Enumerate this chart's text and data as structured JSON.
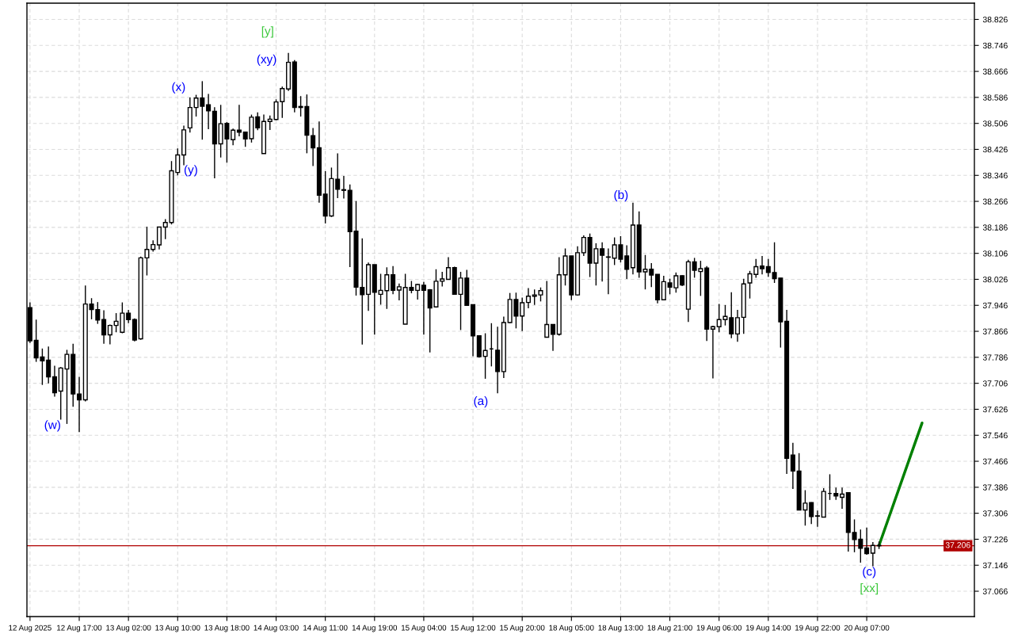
{
  "chart_data": {
    "type": "candlestick",
    "categories": [
      "12 Aug 2025",
      null,
      null,
      null,
      null,
      null,
      null,
      null,
      "12 Aug 17:00",
      null,
      null,
      null,
      null,
      null,
      null,
      null,
      "13 Aug 02:00",
      null,
      null,
      null,
      null,
      null,
      null,
      null,
      "13 Aug 10:00",
      null,
      null,
      null,
      null,
      null,
      null,
      null,
      "13 Aug 18:00",
      null,
      null,
      null,
      null,
      null,
      null,
      null,
      "14 Aug 03:00",
      null,
      null,
      null,
      null,
      null,
      null,
      null,
      "14 Aug 11:00",
      null,
      null,
      null,
      null,
      null,
      null,
      null,
      "14 Aug 19:00",
      null,
      null,
      null,
      null,
      null,
      null,
      null,
      "15 Aug 04:00",
      null,
      null,
      null,
      null,
      null,
      null,
      null,
      "15 Aug 12:00",
      null,
      null,
      null,
      null,
      null,
      null,
      null,
      "15 Aug 20:00",
      null,
      null,
      null,
      null,
      null,
      null,
      null,
      "18 Aug 05:00",
      null,
      null,
      null,
      null,
      null,
      null,
      null,
      "18 Aug 13:00",
      null,
      null,
      null,
      null,
      null,
      null,
      null,
      "18 Aug 21:00",
      null,
      null,
      null,
      null,
      null,
      null,
      null,
      "19 Aug 06:00",
      null,
      null,
      null,
      null,
      null,
      null,
      null,
      "19 Aug 14:00",
      null,
      null,
      null,
      null,
      null,
      null,
      null,
      "19 Aug 22:00",
      null,
      null,
      null,
      null,
      null,
      null,
      null,
      "20 Aug 07:00",
      null,
      null,
      null,
      null,
      null,
      null,
      null,
      null,
      null,
      null,
      null,
      null,
      null,
      null,
      null,
      null,
      null
    ],
    "ohlc": [
      [
        37.939,
        37.955,
        37.83,
        37.837
      ],
      [
        37.838,
        37.902,
        37.772,
        37.784
      ],
      [
        37.787,
        37.813,
        37.701,
        37.775
      ],
      [
        37.777,
        37.819,
        37.706,
        37.726
      ],
      [
        37.726,
        37.76,
        37.665,
        37.677
      ],
      [
        37.682,
        37.756,
        37.594,
        37.753
      ],
      [
        37.75,
        37.809,
        37.581,
        37.795
      ],
      [
        37.795,
        37.828,
        37.634,
        37.673
      ],
      [
        37.673,
        37.726,
        37.556,
        37.655
      ],
      [
        37.655,
        38.007,
        37.65,
        37.95
      ],
      [
        37.95,
        37.968,
        37.903,
        37.933
      ],
      [
        37.933,
        37.956,
        37.889,
        37.901
      ],
      [
        37.902,
        37.931,
        37.828,
        37.855
      ],
      [
        37.855,
        37.887,
        37.826,
        37.884
      ],
      [
        37.884,
        37.922,
        37.863,
        37.897
      ],
      [
        37.863,
        37.955,
        37.86,
        37.922
      ],
      [
        37.922,
        37.932,
        37.891,
        37.902
      ],
      [
        37.902,
        37.906,
        37.835,
        37.839
      ],
      [
        37.843,
        38.096,
        37.84,
        38.092
      ],
      [
        38.092,
        38.188,
        38.038,
        38.118
      ],
      [
        38.118,
        38.146,
        38.111,
        38.133
      ],
      [
        38.132,
        38.187,
        38.118,
        38.187
      ],
      [
        38.187,
        38.211,
        38.15,
        38.201
      ],
      [
        38.201,
        38.39,
        38.195,
        38.36
      ],
      [
        38.355,
        38.429,
        38.346,
        38.409
      ],
      [
        38.409,
        38.499,
        38.377,
        38.486
      ],
      [
        38.492,
        38.586,
        38.478,
        38.555
      ],
      [
        38.555,
        38.594,
        38.527,
        38.584
      ],
      [
        38.584,
        38.636,
        38.456,
        38.559
      ],
      [
        38.563,
        38.597,
        38.488,
        38.545
      ],
      [
        38.543,
        38.556,
        38.337,
        38.443
      ],
      [
        38.443,
        38.563,
        38.401,
        38.505
      ],
      [
        38.506,
        38.51,
        38.385,
        38.458
      ],
      [
        38.456,
        38.49,
        38.439,
        38.485
      ],
      [
        38.485,
        38.563,
        38.466,
        38.479
      ],
      [
        38.479,
        38.479,
        38.434,
        38.458
      ],
      [
        38.459,
        38.533,
        38.447,
        38.525
      ],
      [
        38.526,
        38.54,
        38.485,
        38.492
      ],
      [
        38.413,
        38.533,
        38.413,
        38.512
      ],
      [
        38.512,
        38.53,
        38.486,
        38.519
      ],
      [
        38.518,
        38.58,
        38.516,
        38.572
      ],
      [
        38.573,
        38.619,
        38.523,
        38.613
      ],
      [
        38.612,
        38.723,
        38.606,
        38.694
      ],
      [
        38.695,
        38.701,
        38.54,
        38.555
      ],
      [
        38.558,
        38.59,
        38.527,
        38.555
      ],
      [
        38.558,
        38.595,
        38.414,
        38.47
      ],
      [
        38.468,
        38.492,
        38.375,
        38.431
      ],
      [
        38.431,
        38.512,
        38.262,
        38.285
      ],
      [
        38.288,
        38.359,
        38.198,
        38.221
      ],
      [
        38.221,
        38.37,
        38.218,
        38.336
      ],
      [
        38.334,
        38.414,
        38.276,
        38.303
      ],
      [
        38.302,
        38.344,
        38.275,
        38.3
      ],
      [
        38.3,
        38.318,
        38.064,
        38.173
      ],
      [
        38.174,
        38.267,
        37.976,
        38.002
      ],
      [
        38.001,
        38.152,
        37.825,
        37.979
      ],
      [
        37.98,
        38.078,
        37.929,
        38.071
      ],
      [
        38.071,
        38.071,
        37.856,
        37.986
      ],
      [
        37.98,
        38.043,
        37.948,
        37.992
      ],
      [
        37.991,
        38.063,
        37.935,
        38.04
      ],
      [
        38.04,
        38.067,
        37.98,
        37.992
      ],
      [
        37.993,
        38.013,
        37.961,
        38.003
      ],
      [
        37.888,
        38.043,
        37.888,
        38.001
      ],
      [
        38.001,
        38.021,
        37.983,
        37.992
      ],
      [
        37.992,
        38.012,
        37.964,
        38.01
      ],
      [
        38.008,
        38.018,
        37.856,
        37.992
      ],
      [
        37.994,
        37.996,
        37.801,
        37.938
      ],
      [
        37.941,
        38.057,
        37.939,
        38.02
      ],
      [
        38.02,
        38.049,
        38.004,
        38.027
      ],
      [
        38.026,
        38.094,
        38.025,
        38.062
      ],
      [
        38.062,
        38.065,
        37.98,
        37.98
      ],
      [
        37.98,
        38.049,
        37.87,
        38.03
      ],
      [
        38.03,
        38.055,
        37.946,
        37.946
      ],
      [
        37.948,
        37.948,
        37.789,
        37.852
      ],
      [
        37.852,
        37.852,
        37.785,
        37.788
      ],
      [
        37.789,
        37.86,
        37.72,
        37.807
      ],
      [
        37.812,
        37.891,
        37.758,
        37.812
      ],
      [
        37.808,
        37.88,
        37.675,
        37.742
      ],
      [
        37.742,
        37.911,
        37.722,
        37.893
      ],
      [
        37.893,
        37.984,
        37.891,
        37.964
      ],
      [
        37.964,
        37.985,
        37.875,
        37.913
      ],
      [
        37.913,
        37.97,
        37.867,
        37.954
      ],
      [
        37.955,
        37.999,
        37.937,
        37.974
      ],
      [
        37.974,
        37.995,
        37.947,
        37.978
      ],
      [
        37.978,
        38.001,
        37.958,
        37.991
      ],
      [
        37.848,
        38.021,
        37.848,
        37.887
      ],
      [
        37.887,
        37.887,
        37.806,
        37.857
      ],
      [
        37.857,
        38.094,
        37.853,
        38.04
      ],
      [
        38.04,
        38.121,
        38.007,
        38.098
      ],
      [
        38.098,
        38.098,
        37.962,
        37.978
      ],
      [
        37.978,
        38.128,
        37.976,
        38.108
      ],
      [
        38.108,
        38.161,
        38.098,
        38.155
      ],
      [
        38.155,
        38.167,
        38.033,
        38.076
      ],
      [
        38.076,
        38.137,
        38.007,
        38.12
      ],
      [
        38.12,
        38.14,
        38.019,
        38.1
      ],
      [
        38.095,
        38.121,
        37.98,
        38.094
      ],
      [
        38.091,
        38.155,
        38.07,
        38.132
      ],
      [
        38.132,
        38.159,
        38.078,
        38.088
      ],
      [
        38.098,
        38.131,
        38.027,
        38.057
      ],
      [
        38.062,
        38.262,
        38.041,
        38.193
      ],
      [
        38.193,
        38.235,
        38.031,
        38.049
      ],
      [
        38.049,
        38.101,
        37.995,
        38.057
      ],
      [
        38.057,
        38.076,
        38.002,
        38.039
      ],
      [
        38.041,
        38.041,
        37.952,
        37.963
      ],
      [
        37.963,
        38.037,
        37.961,
        38.019
      ],
      [
        38.015,
        38.028,
        37.98,
        38.002
      ],
      [
        38.0,
        38.047,
        37.985,
        38.037
      ],
      [
        38.037,
        38.039,
        38.005,
        38.009
      ],
      [
        37.934,
        38.086,
        37.895,
        38.08
      ],
      [
        38.08,
        38.092,
        38.031,
        38.054
      ],
      [
        38.05,
        38.083,
        37.975,
        38.059
      ],
      [
        38.061,
        38.067,
        37.836,
        37.873
      ],
      [
        37.873,
        37.883,
        37.721,
        37.88
      ],
      [
        37.88,
        37.95,
        37.863,
        37.902
      ],
      [
        37.902,
        37.947,
        37.884,
        37.912
      ],
      [
        37.908,
        37.986,
        37.845,
        37.858
      ],
      [
        37.858,
        37.932,
        37.834,
        37.908
      ],
      [
        37.909,
        38.028,
        37.858,
        38.012
      ],
      [
        38.015,
        38.052,
        37.967,
        38.043
      ],
      [
        38.041,
        38.089,
        38.031,
        38.065
      ],
      [
        38.067,
        38.098,
        38.041,
        38.059
      ],
      [
        38.065,
        38.089,
        38.034,
        38.047
      ],
      [
        38.047,
        38.14,
        38.015,
        38.028
      ],
      [
        38.03,
        38.03,
        37.816,
        37.895
      ],
      [
        37.897,
        37.932,
        37.427,
        37.475
      ],
      [
        37.485,
        37.523,
        37.381,
        37.436
      ],
      [
        37.436,
        37.491,
        37.316,
        37.316
      ],
      [
        37.316,
        37.377,
        37.268,
        37.337
      ],
      [
        37.339,
        37.34,
        37.273,
        37.296
      ],
      [
        37.298,
        37.314,
        37.264,
        37.297
      ],
      [
        37.294,
        37.383,
        37.294,
        37.373
      ],
      [
        37.367,
        37.426,
        37.347,
        37.367
      ],
      [
        37.367,
        37.385,
        37.347,
        37.359
      ],
      [
        37.355,
        37.385,
        37.32,
        37.365
      ],
      [
        37.369,
        37.371,
        37.188,
        37.247
      ],
      [
        37.247,
        37.287,
        37.186,
        37.225
      ],
      [
        37.226,
        37.256,
        37.154,
        37.198
      ],
      [
        37.199,
        37.262,
        37.178,
        37.182
      ],
      [
        37.183,
        37.217,
        37.143,
        37.207
      ],
      [
        37.207,
        37.219,
        37.196,
        37.206
      ],
      null,
      null,
      null,
      null,
      null,
      null,
      null,
      null,
      null,
      null,
      null,
      null,
      null,
      null,
      null
    ],
    "series": [
      {
        "type": "line",
        "color": "#008000",
        "values": [
          null,
          null,
          null,
          null,
          null,
          null,
          null,
          null,
          null,
          null,
          null,
          null,
          null,
          null,
          null,
          null,
          null,
          null,
          null,
          null,
          null,
          null,
          null,
          null,
          null,
          null,
          null,
          null,
          null,
          null,
          null,
          null,
          null,
          null,
          null,
          null,
          null,
          null,
          null,
          null,
          null,
          null,
          null,
          null,
          null,
          null,
          null,
          null,
          null,
          null,
          null,
          null,
          null,
          null,
          null,
          null,
          null,
          null,
          null,
          null,
          null,
          null,
          null,
          null,
          null,
          null,
          null,
          null,
          null,
          null,
          null,
          null,
          null,
          null,
          null,
          null,
          null,
          null,
          null,
          null,
          null,
          null,
          null,
          null,
          null,
          null,
          null,
          null,
          null,
          null,
          null,
          null,
          null,
          null,
          null,
          null,
          null,
          null,
          null,
          null,
          null,
          null,
          null,
          null,
          null,
          null,
          null,
          null,
          null,
          null,
          null,
          null,
          null,
          null,
          null,
          null,
          null,
          null,
          null,
          null,
          null,
          null,
          null,
          null,
          null,
          null,
          null,
          null,
          null,
          null,
          null,
          null,
          null,
          null,
          null,
          null,
          null,
          null,
          37.207,
          null,
          null,
          null,
          null,
          null,
          null,
          37.584,
          null,
          null,
          null,
          null,
          null,
          null,
          null,
          null
        ]
      }
    ],
    "ylim": [
      36.988,
      38.876
    ],
    "yticks": [
      37.066,
      37.146,
      37.226,
      37.306,
      37.386,
      37.466,
      37.546,
      37.626,
      37.706,
      37.786,
      37.866,
      37.946,
      38.026,
      38.106,
      38.186,
      38.266,
      38.346,
      38.426,
      38.506,
      38.586,
      38.666,
      38.746,
      38.826
    ],
    "grid": true,
    "ref_lines": [
      {
        "axis": "y",
        "value": 37.206,
        "label": "37.206",
        "color": "#b00000"
      }
    ],
    "annotations": [
      "(w)",
      "(x)",
      "(y)",
      "(xy)",
      "[y]",
      "(a)",
      "(b)",
      "(c)",
      "[xx]"
    ]
  }
}
